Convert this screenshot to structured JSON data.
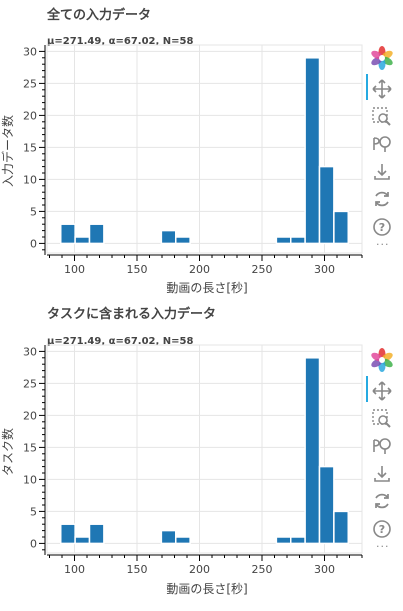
{
  "chart_data": [
    {
      "type": "bar",
      "title": "全ての入力データ",
      "subtitle": "μ=271.49, α=67.02, N=58",
      "xlabel": "動画の長さ[秒]",
      "ylabel": "入力データ数",
      "xlim": [
        78,
        330
      ],
      "ylim": [
        -1.5,
        31
      ],
      "xticks": [
        "100",
        "150",
        "200",
        "250",
        "300"
      ],
      "yticks": [
        "0",
        "5",
        "10",
        "15",
        "20",
        "25",
        "30"
      ],
      "bins": [
        {
          "start": 89,
          "end": 100.5,
          "count": 3
        },
        {
          "start": 100.5,
          "end": 112,
          "count": 1
        },
        {
          "start": 112,
          "end": 123.5,
          "count": 3
        },
        {
          "start": 169.5,
          "end": 181,
          "count": 2
        },
        {
          "start": 181,
          "end": 192.5,
          "count": 1
        },
        {
          "start": 261.5,
          "end": 273,
          "count": 1
        },
        {
          "start": 273,
          "end": 284.5,
          "count": 1
        },
        {
          "start": 284.5,
          "end": 296,
          "count": 29
        },
        {
          "start": 296,
          "end": 307.5,
          "count": 12
        },
        {
          "start": 307.5,
          "end": 319,
          "count": 5
        }
      ],
      "bar_color": "#1f77b4",
      "grid": true
    },
    {
      "type": "bar",
      "title": "タスクに含まれる入力データ",
      "subtitle": "μ=271.49, α=67.02, N=58",
      "xlabel": "動画の長さ[秒]",
      "ylabel": "タスク数",
      "xlim": [
        78,
        330
      ],
      "ylim": [
        -1.5,
        31
      ],
      "xticks": [
        "100",
        "150",
        "200",
        "250",
        "300"
      ],
      "yticks": [
        "0",
        "5",
        "10",
        "15",
        "20",
        "25",
        "30"
      ],
      "bins": [
        {
          "start": 89,
          "end": 100.5,
          "count": 3
        },
        {
          "start": 100.5,
          "end": 112,
          "count": 1
        },
        {
          "start": 112,
          "end": 123.5,
          "count": 3
        },
        {
          "start": 169.5,
          "end": 181,
          "count": 2
        },
        {
          "start": 181,
          "end": 192.5,
          "count": 1
        },
        {
          "start": 261.5,
          "end": 273,
          "count": 1
        },
        {
          "start": 273,
          "end": 284.5,
          "count": 1
        },
        {
          "start": 284.5,
          "end": 296,
          "count": 29
        },
        {
          "start": 296,
          "end": 307.5,
          "count": 12
        },
        {
          "start": 307.5,
          "end": 319,
          "count": 5
        }
      ],
      "bar_color": "#1f77b4",
      "grid": true
    }
  ],
  "toolbar": {
    "tools": [
      "bokeh-logo-icon",
      "pan-icon",
      "box-zoom-icon",
      "wheel-zoom-icon",
      "save-icon",
      "reset-icon",
      "help-icon"
    ],
    "more_label": "···",
    "active_color": "#26aae1"
  }
}
